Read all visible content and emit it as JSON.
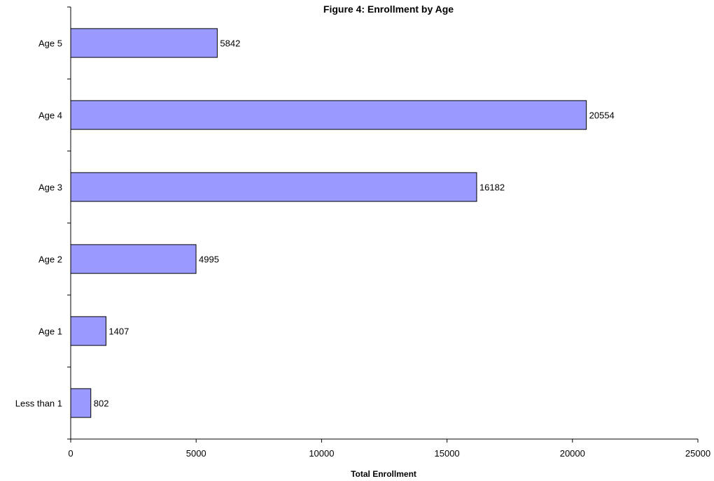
{
  "chart_data": {
    "type": "bar",
    "orientation": "horizontal",
    "title": "Figure 4:  Enrollment by Age",
    "xlabel": "Total Enrollment",
    "ylabel": "",
    "categories": [
      "Less than 1",
      "Age 1",
      "Age 2",
      "Age 3",
      "Age 4",
      "Age 5"
    ],
    "values": [
      802,
      1407,
      4995,
      16182,
      20554,
      5842
    ],
    "xlim": [
      0,
      25000
    ],
    "xticks": [
      0,
      5000,
      10000,
      15000,
      20000,
      25000
    ],
    "xtick_labels": [
      "0",
      "5000",
      "10000",
      "15000",
      "20000",
      "25000"
    ],
    "data_labels": [
      "802",
      "1407",
      "4995",
      "16182",
      "20554",
      "5842"
    ],
    "bar_color": "#9999ff",
    "grid": false,
    "legend": "none"
  }
}
